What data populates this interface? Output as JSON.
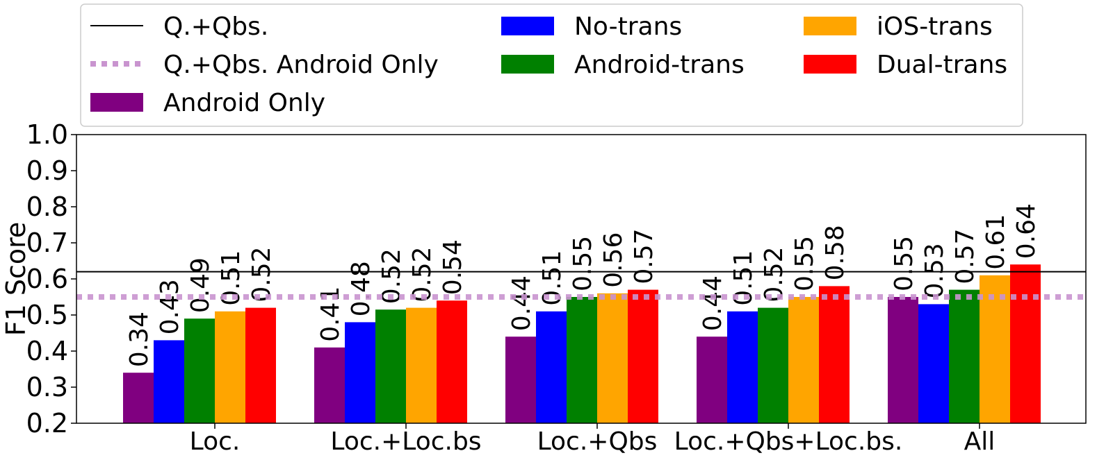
{
  "chart_data": {
    "type": "bar",
    "categories": [
      "Loc.",
      "Loc.+Loc.bs",
      "Loc.+Qbs",
      "Loc.+Qbs+Loc.bs.",
      "All"
    ],
    "ylabel": "F1 Score",
    "xlabel": "",
    "ylim": [
      0.2,
      1.0
    ],
    "yticks": [
      "0.2",
      "0.3",
      "0.4",
      "0.5",
      "0.6",
      "0.7",
      "0.8",
      "0.9",
      "1.0"
    ],
    "grid": false,
    "legend_position": "top",
    "series": [
      {
        "name": "Android Only",
        "color": "#800080",
        "values": [
          0.34,
          0.41,
          0.44,
          0.44,
          0.55
        ],
        "labels": [
          "0.34",
          "0.41",
          "0.44",
          "0.44",
          "0.55"
        ]
      },
      {
        "name": "No-trans",
        "color": "#0000ff",
        "values": [
          0.43,
          0.48,
          0.51,
          0.51,
          0.53
        ],
        "labels": [
          "0.43",
          "0.48",
          "0.51",
          "0.51",
          "0.53"
        ]
      },
      {
        "name": "Android-trans",
        "color": "#008000",
        "values": [
          0.49,
          0.515,
          0.55,
          0.52,
          0.57
        ],
        "labels": [
          "0.49",
          "0.52",
          "0.55",
          "0.52",
          "0.57"
        ]
      },
      {
        "name": "iOS-trans",
        "color": "#ffa500",
        "values": [
          0.51,
          0.52,
          0.56,
          0.55,
          0.61
        ],
        "labels": [
          "0.51",
          "0.52",
          "0.56",
          "0.55",
          "0.61"
        ]
      },
      {
        "name": "Dual-trans",
        "color": "#ff0000",
        "values": [
          0.52,
          0.54,
          0.57,
          0.58,
          0.64
        ],
        "labels": [
          "0.52",
          "0.54",
          "0.57",
          "0.58",
          "0.64"
        ]
      }
    ],
    "reference_lines": [
      {
        "name": "Q.+Qbs.",
        "value": 0.62,
        "color": "#000000",
        "style": "solid"
      },
      {
        "name": "Q.+Qbs. Android Only",
        "value": 0.55,
        "color": "#c994cf",
        "style": "dotted"
      }
    ],
    "legend": [
      {
        "name": "Q.+Qbs.",
        "kind": "line",
        "color": "#000000"
      },
      {
        "name": "No-trans",
        "kind": "patch",
        "color": "#0000ff"
      },
      {
        "name": "iOS-trans",
        "kind": "patch",
        "color": "#ffa500"
      },
      {
        "name": "Q.+Qbs. Android Only",
        "kind": "dotted",
        "color": "#c994cf"
      },
      {
        "name": "Android-trans",
        "kind": "patch",
        "color": "#008000"
      },
      {
        "name": "Dual-trans",
        "kind": "patch",
        "color": "#ff0000"
      },
      {
        "name": "Android Only",
        "kind": "patch",
        "color": "#800080"
      }
    ]
  }
}
